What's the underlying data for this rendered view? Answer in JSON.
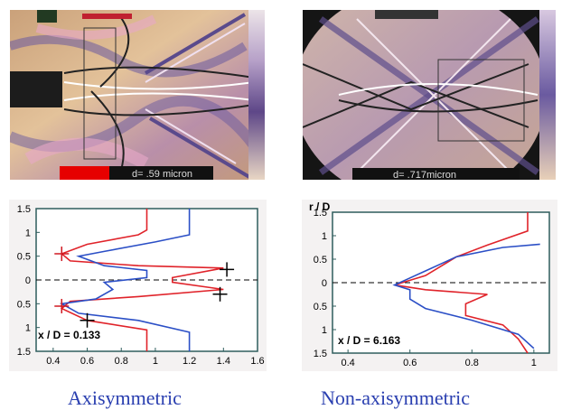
{
  "figures": {
    "left_image": {
      "scale_label": "d=   .59 micron",
      "colors": {
        "bg": "#d8b48a",
        "stripe": "#6a5aa0",
        "pink": "#e7a8c8",
        "dark": "#1c1c1c",
        "red": "#e60000"
      }
    },
    "right_image": {
      "scale_label": "d=   .717micron",
      "colors": {
        "bg": "#c7a8a0",
        "stripe": "#5e4e8c",
        "dark": "#151515",
        "red": "#e60000"
      }
    }
  },
  "left_plot": {
    "annotation": "x / D = 0.133",
    "chart_data": {
      "type": "line",
      "xlim": [
        0.3,
        1.6
      ],
      "ylim": [
        -1.5,
        1.5
      ],
      "x_ticks": [
        0.4,
        0.6,
        0.8,
        1,
        1.2,
        1.4,
        1.6
      ],
      "y_ticks": [
        1.5,
        1,
        0.5,
        0,
        0.5,
        1,
        1.5
      ],
      "series": [
        {
          "color": "#e0232a",
          "points": [
            [
              0.95,
              1.5
            ],
            [
              0.95,
              1.05
            ],
            [
              0.9,
              0.95
            ],
            [
              0.6,
              0.75
            ],
            [
              0.45,
              0.55
            ],
            [
              0.5,
              0.4
            ],
            [
              0.9,
              0.3
            ],
            [
              1.4,
              0.25
            ],
            [
              1.1,
              0.05
            ],
            [
              1.1,
              -0.05
            ],
            [
              1.4,
              -0.2
            ],
            [
              0.9,
              -0.35
            ],
            [
              0.5,
              -0.45
            ],
            [
              0.45,
              -0.6
            ],
            [
              0.6,
              -0.85
            ],
            [
              0.95,
              -1.05
            ],
            [
              0.95,
              -1.5
            ]
          ]
        },
        {
          "color": "#2b4fc6",
          "points": [
            [
              1.2,
              1.5
            ],
            [
              1.2,
              0.95
            ],
            [
              1.0,
              0.8
            ],
            [
              0.7,
              0.6
            ],
            [
              0.55,
              0.5
            ],
            [
              0.7,
              0.3
            ],
            [
              0.95,
              0.2
            ],
            [
              0.95,
              0.05
            ],
            [
              0.7,
              -0.05
            ],
            [
              0.75,
              -0.2
            ],
            [
              0.65,
              -0.4
            ],
            [
              0.45,
              -0.5
            ],
            [
              0.55,
              -0.7
            ],
            [
              0.9,
              -0.85
            ],
            [
              1.2,
              -1.1
            ],
            [
              1.2,
              -1.5
            ]
          ]
        }
      ],
      "markers": [
        [
          0.45,
          0.55
        ],
        [
          1.42,
          0.22
        ],
        [
          1.38,
          -0.3
        ],
        [
          0.45,
          -0.55
        ],
        [
          0.6,
          -0.85
        ]
      ]
    }
  },
  "right_plot": {
    "axis_title": "r / D",
    "annotation": "x / D = 6.163",
    "chart_data": {
      "type": "line",
      "xlim": [
        0.35,
        1.05
      ],
      "ylim": [
        -1.5,
        1.5
      ],
      "x_ticks": [
        0.4,
        0.6,
        0.8,
        1
      ],
      "y_ticks": [
        1.5,
        1,
        0.5,
        0,
        0.5,
        1,
        1.5
      ],
      "series": [
        {
          "color": "#e0232a",
          "points": [
            [
              0.98,
              1.5
            ],
            [
              0.98,
              1.1
            ],
            [
              0.85,
              0.8
            ],
            [
              0.75,
              0.55
            ],
            [
              0.7,
              0.35
            ],
            [
              0.65,
              0.15
            ],
            [
              0.6,
              0.05
            ],
            [
              0.55,
              -0.05
            ],
            [
              0.65,
              -0.15
            ],
            [
              0.85,
              -0.25
            ],
            [
              0.78,
              -0.45
            ],
            [
              0.78,
              -0.7
            ],
            [
              0.9,
              -0.9
            ],
            [
              0.95,
              -1.2
            ],
            [
              0.98,
              -1.5
            ]
          ]
        },
        {
          "color": "#2b4fc6",
          "points": [
            [
              1.02,
              0.82
            ],
            [
              0.9,
              0.75
            ],
            [
              0.75,
              0.55
            ],
            [
              0.7,
              0.4
            ],
            [
              0.65,
              0.25
            ],
            [
              0.6,
              0.1
            ],
            [
              0.55,
              -0.05
            ],
            [
              0.6,
              -0.15
            ],
            [
              0.6,
              -0.35
            ],
            [
              0.65,
              -0.55
            ],
            [
              0.8,
              -0.8
            ],
            [
              0.95,
              -1.1
            ],
            [
              1.0,
              -1.4
            ]
          ]
        }
      ]
    }
  },
  "captions": {
    "left": "Axisymmetric",
    "right": "Non-axisymmetric"
  }
}
